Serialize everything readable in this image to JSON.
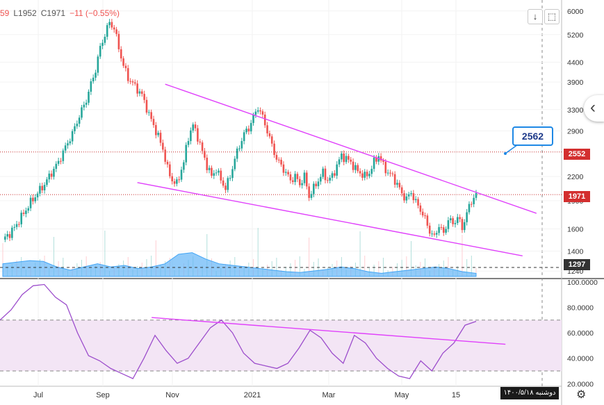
{
  "legend": {
    "open": "59",
    "low": "L1952",
    "close": "C1971",
    "change": "−11 (−0.55%)"
  },
  "toolbar": {
    "download_label": "↓",
    "layout_label": "⬚"
  },
  "icons": {
    "side_panel": "chevron-left-icon",
    "settings": "gear-icon"
  },
  "colors": {
    "up": "#26a69a",
    "down": "#ef5350",
    "trendline": "#e040fb",
    "volume": "#64b5f6",
    "rsi": "#9c4dcc",
    "rsi_band": "#f3e5f5",
    "red_level": "#c62828",
    "price_label": "#d32f2f"
  },
  "footer_date": "۱۴۰۰/۵/۱۸ دوشنبه",
  "callout_label": "2562",
  "price_labels": {
    "resistance": "2552",
    "last": "1971",
    "volume": "1297"
  },
  "chart_data": [
    {
      "type": "candlestick",
      "scale": "log",
      "x_ticks": [
        "Jul",
        "Sep",
        "Nov",
        "2021",
        "Mar",
        "May",
        "15"
      ],
      "y_ticks": [
        "6000",
        "5200",
        "4400",
        "3900",
        "3300",
        "2900",
        "2200",
        "1900",
        "1600",
        "1400",
        "1240"
      ],
      "ylim": [
        1200,
        6200
      ],
      "close_path": [
        [
          0,
          1500
        ],
        [
          4,
          1580
        ],
        [
          8,
          1720
        ],
        [
          12,
          1880
        ],
        [
          18,
          2100
        ],
        [
          24,
          2400
        ],
        [
          30,
          2850
        ],
        [
          36,
          3500
        ],
        [
          40,
          4200
        ],
        [
          42,
          4800
        ],
        [
          44,
          5200
        ],
        [
          46,
          5600
        ],
        [
          48,
          5400
        ],
        [
          50,
          4800
        ],
        [
          52,
          4300
        ],
        [
          54,
          4000
        ],
        [
          57,
          3800
        ],
        [
          60,
          3600
        ],
        [
          63,
          3200
        ],
        [
          66,
          2900
        ],
        [
          69,
          2600
        ],
        [
          71,
          2300
        ],
        [
          73,
          2150
        ],
        [
          75,
          2100
        ],
        [
          78,
          2400
        ],
        [
          80,
          2800
        ],
        [
          82,
          3000
        ],
        [
          84,
          2800
        ],
        [
          86,
          2550
        ],
        [
          88,
          2350
        ],
        [
          90,
          2200
        ],
        [
          92,
          2300
        ],
        [
          94,
          2150
        ],
        [
          96,
          2050
        ],
        [
          98,
          2200
        ],
        [
          100,
          2450
        ],
        [
          102,
          2650
        ],
        [
          104,
          2850
        ],
        [
          106,
          2950
        ],
        [
          108,
          3150
        ],
        [
          110,
          3350
        ],
        [
          112,
          3150
        ],
        [
          114,
          2900
        ],
        [
          116,
          2650
        ],
        [
          118,
          2450
        ],
        [
          120,
          2350
        ],
        [
          122,
          2250
        ],
        [
          124,
          2150
        ],
        [
          126,
          2200
        ],
        [
          128,
          2100
        ],
        [
          130,
          2200
        ],
        [
          132,
          1950
        ],
        [
          134,
          2050
        ],
        [
          136,
          2150
        ],
        [
          138,
          2250
        ],
        [
          140,
          2150
        ],
        [
          142,
          2200
        ],
        [
          144,
          2350
        ],
        [
          146,
          2500
        ],
        [
          148,
          2450
        ],
        [
          150,
          2400
        ],
        [
          152,
          2300
        ],
        [
          154,
          2250
        ],
        [
          156,
          2200
        ],
        [
          158,
          2250
        ],
        [
          160,
          2400
        ],
        [
          162,
          2500
        ],
        [
          164,
          2350
        ],
        [
          166,
          2250
        ],
        [
          168,
          2200
        ],
        [
          170,
          2100
        ],
        [
          172,
          1980
        ],
        [
          174,
          1920
        ],
        [
          176,
          2000
        ],
        [
          178,
          1880
        ],
        [
          180,
          1800
        ],
        [
          182,
          1700
        ],
        [
          184,
          1580
        ],
        [
          186,
          1520
        ],
        [
          188,
          1640
        ],
        [
          190,
          1550
        ],
        [
          192,
          1700
        ],
        [
          194,
          1650
        ],
        [
          196,
          1720
        ],
        [
          198,
          1610
        ],
        [
          200,
          1760
        ],
        [
          202,
          1900
        ],
        [
          204,
          1971
        ]
      ],
      "trendlines": [
        {
          "from": [
            70,
            3850
          ],
          "to": [
            230,
            1760
          ]
        },
        {
          "from": [
            58,
            2120
          ],
          "to": [
            224,
            1360
          ]
        }
      ],
      "levels": [
        2552,
        1971
      ]
    },
    {
      "type": "area",
      "label": "volume-ma",
      "values": [
        1320,
        1330,
        1340,
        1335,
        1300,
        1280,
        1300,
        1320,
        1300,
        1310,
        1290,
        1300,
        1320,
        1380,
        1390,
        1350,
        1320,
        1310,
        1300,
        1290,
        1280,
        1270,
        1265,
        1275,
        1285,
        1300,
        1290,
        1270,
        1260,
        1270,
        1280,
        1290,
        1300,
        1290,
        1270,
        1260
      ]
    },
    {
      "type": "line",
      "label": "RSI",
      "y_ticks": [
        "100.0000",
        "80.0000",
        "60.0000",
        "40.0000",
        "20.0000"
      ],
      "ylim": [
        18,
        101
      ],
      "bands": [
        70,
        30
      ],
      "values": [
        70,
        78,
        90,
        97,
        98,
        88,
        82,
        60,
        42,
        38,
        32,
        28,
        24,
        40,
        58,
        46,
        36,
        40,
        52,
        64,
        70,
        60,
        44,
        36,
        34,
        32,
        36,
        48,
        62,
        56,
        44,
        36,
        58,
        52,
        40,
        32,
        26,
        24,
        38,
        30,
        44,
        52,
        66,
        69
      ],
      "trendlines": [
        {
          "from": [
            0.27,
            72
          ],
          "to": [
            0.9,
            51
          ]
        }
      ]
    }
  ]
}
